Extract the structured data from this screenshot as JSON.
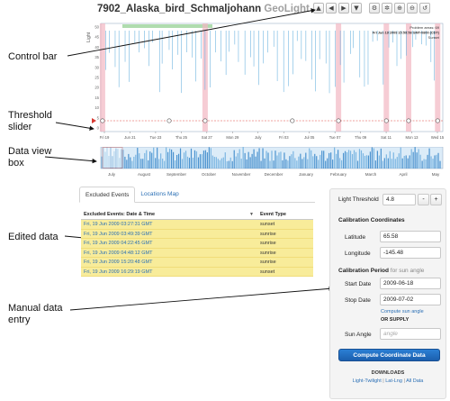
{
  "title": {
    "main": "7902_Alaska_bird_Schmaljohann",
    "brand": "GeoLight"
  },
  "controls": [
    {
      "icon": "arrow-up-icon",
      "glyph": "▲"
    },
    {
      "icon": "arrow-left-icon",
      "glyph": "◀"
    },
    {
      "icon": "arrow-right-icon",
      "glyph": "▶"
    },
    {
      "icon": "arrow-down-icon",
      "glyph": "▼"
    },
    {
      "icon": "settings-icon",
      "glyph": "⚙"
    },
    {
      "icon": "gear-icon",
      "glyph": "✲"
    },
    {
      "icon": "zoom-in-icon",
      "glyph": "⊕"
    },
    {
      "icon": "zoom-out-icon",
      "glyph": "⊖"
    },
    {
      "icon": "reset-icon",
      "glyph": "↺"
    }
  ],
  "annotations": {
    "control_bar": "Control bar",
    "threshold_slider": [
      "Threshold",
      "slider"
    ],
    "data_view_box": [
      "Data view",
      "box"
    ],
    "edited_data": "Edited data",
    "manual_entry": [
      "Manual data",
      "entry"
    ]
  },
  "chart": {
    "ylabel": "Light",
    "yticks": [
      "50",
      "45",
      "40",
      "35",
      "30",
      "25",
      "20",
      "15",
      "10",
      "5",
      "0"
    ],
    "xticks": [
      "Fri 19",
      "Jun 21",
      "Tue 23",
      "Thu 25",
      "Sat 27",
      "Mon 29",
      "July",
      "Fri 03",
      "Jul 05",
      "Tue 07",
      "Thu 09",
      "Sat 11",
      "Mon 13",
      "Wed 15"
    ],
    "info": [
      "Problem areas: 69",
      "Fri Jun 19 2009 15:59:58 GMT-0800 (CDT)",
      "Sunset"
    ],
    "threshold": 4.8,
    "overview_labels": [
      "July",
      "August",
      "September",
      "October",
      "November",
      "December",
      "January",
      "February",
      "March",
      "April",
      "May"
    ]
  },
  "chart_data": {
    "type": "bar",
    "title": "",
    "ylabel": "Light",
    "ylim": [
      0,
      50
    ],
    "xlabel": "",
    "x": [
      "Fri 19",
      "Jun 21",
      "Tue 23",
      "Thu 25",
      "Sat 27",
      "Mon 29",
      "July",
      "Fri 03",
      "Jul 05",
      "Tue 07",
      "Thu 09",
      "Sat 11",
      "Mon 13",
      "Wed 15"
    ],
    "threshold": 4.8,
    "grid": false
  },
  "tabs": {
    "excluded": "Excluded Events",
    "map": "Locations Map"
  },
  "table": {
    "headers": {
      "date": "Excluded Events: Date & Time",
      "type": "Event Type"
    },
    "rows": [
      {
        "date": "Fri, 19 Jun 2009 03:27:31 GMT",
        "type": "sunset"
      },
      {
        "date": "Fri, 19 Jun 2009 03:49:39 GMT",
        "type": "sunrise"
      },
      {
        "date": "Fri, 19 Jun 2009 04:22:45 GMT",
        "type": "sunrise"
      },
      {
        "date": "Fri, 19 Jun 2009 04:48:12 GMT",
        "type": "sunrise"
      },
      {
        "date": "Fri, 19 Jun 2009 15:20:48 GMT",
        "type": "sunrise"
      },
      {
        "date": "Fri, 19 Jun 2009 16:29:19 GMT",
        "type": "sunset"
      }
    ]
  },
  "panel": {
    "light_threshold_label": "Light Threshold",
    "light_threshold_value": "4.8",
    "minus": "-",
    "plus": "+",
    "calibration_coords": "Calibration Coordinates",
    "latitude_label": "Latitude",
    "latitude_value": "65.58",
    "longitude_label": "Longitude",
    "longitude_value": "-145.48",
    "calibration_period": "Calibration Period",
    "calibration_period_suffix": "for sun angle",
    "start_label": "Start Date",
    "start_value": "2009-06-18",
    "stop_label": "Stop Date",
    "stop_value": "2009-07-02",
    "compute_sun": "Compute sun angle",
    "or_supply": "OR SUPPLY",
    "sun_angle_label": "Sun Angle",
    "sun_angle_placeholder": "angle",
    "compute_button": "Compute Coordinate Data",
    "downloads": "DOWNLOADS",
    "dl_links": [
      "Light-Twilight",
      "Lat-Lng",
      "All Data"
    ]
  }
}
